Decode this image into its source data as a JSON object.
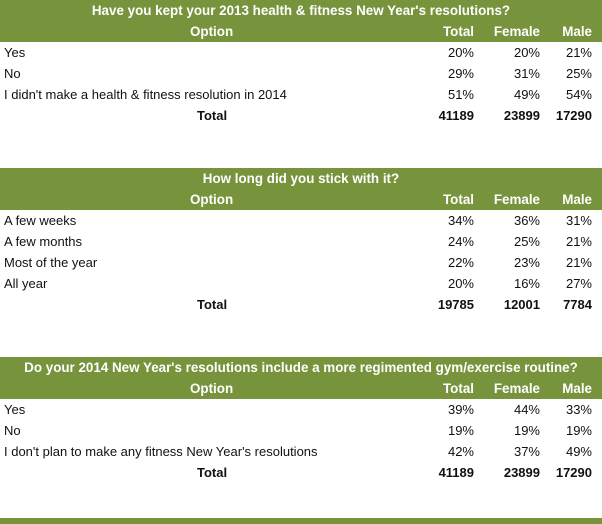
{
  "colors": {
    "header_bg": "#77933c",
    "header_text": "#ffffff",
    "body_text": "#111111"
  },
  "chart_data": [
    {
      "type": "table",
      "title": "Have you kept your 2013 health & fitness New Year's resolutions?",
      "columns": [
        "Option",
        "Total",
        "Female",
        "Male"
      ],
      "rows": [
        {
          "option": "Yes",
          "total": "20%",
          "female": "20%",
          "male": "21%"
        },
        {
          "option": "No",
          "total": "29%",
          "female": "31%",
          "male": "25%"
        },
        {
          "option": "I didn't make a health & fitness resolution in 2014",
          "total": "51%",
          "female": "49%",
          "male": "54%"
        }
      ],
      "totals": {
        "label": "Total",
        "total": "41189",
        "female": "23899",
        "male": "17290"
      }
    },
    {
      "type": "table",
      "title": "How long did you stick with it?",
      "columns": [
        "Option",
        "Total",
        "Female",
        "Male"
      ],
      "rows": [
        {
          "option": "A few weeks",
          "total": "34%",
          "female": "36%",
          "male": "31%"
        },
        {
          "option": "A few months",
          "total": "24%",
          "female": "25%",
          "male": "21%"
        },
        {
          "option": "Most of the year",
          "total": "22%",
          "female": "23%",
          "male": "21%"
        },
        {
          "option": "All year",
          "total": "20%",
          "female": "16%",
          "male": "27%"
        }
      ],
      "totals": {
        "label": "Total",
        "total": "19785",
        "female": "12001",
        "male": "7784"
      }
    },
    {
      "type": "table",
      "title": "Do your 2014 New Year's resolutions include a more regimented gym/exercise routine?",
      "columns": [
        "Option",
        "Total",
        "Female",
        "Male"
      ],
      "rows": [
        {
          "option": "Yes",
          "total": "39%",
          "female": "44%",
          "male": "33%"
        },
        {
          "option": "No",
          "total": "19%",
          "female": "19%",
          "male": "19%"
        },
        {
          "option": "I don't plan to make any fitness New Year's resolutions",
          "total": "42%",
          "female": "37%",
          "male": "49%"
        }
      ],
      "totals": {
        "label": "Total",
        "total": "41189",
        "female": "23899",
        "male": "17290"
      }
    }
  ]
}
